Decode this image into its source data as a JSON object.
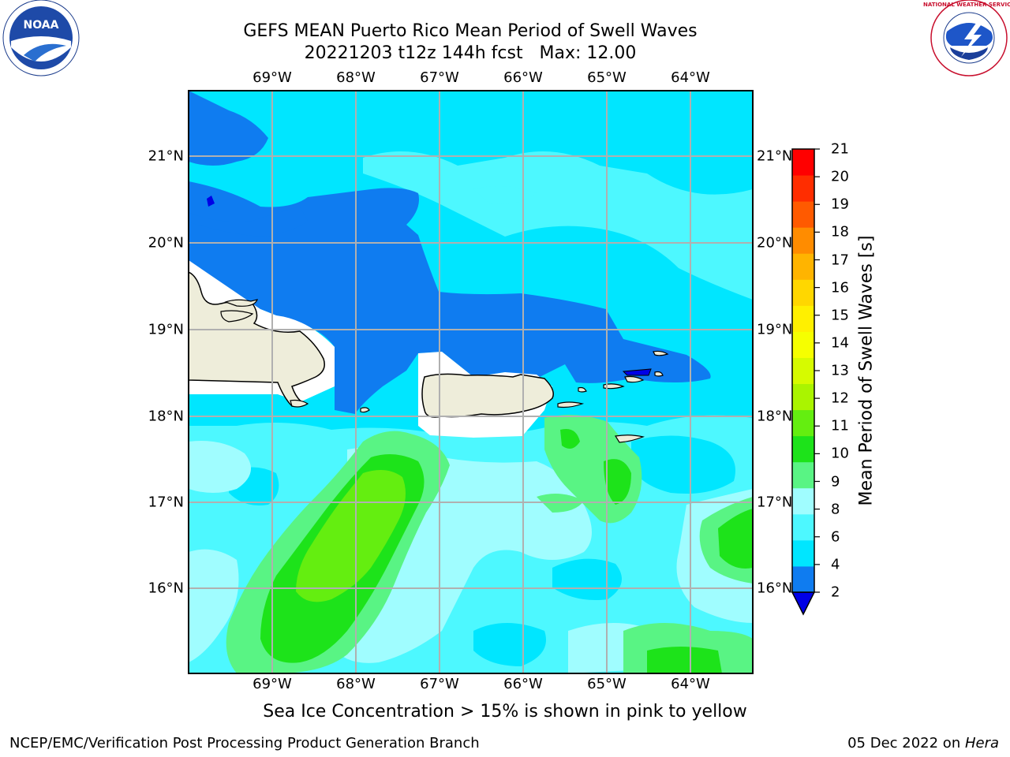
{
  "header": {
    "title_line1": "GEFS MEAN Puerto Rico Mean Period of Swell Waves",
    "title_line2": "20221203 t12z 144h fcst   Max: 12.00"
  },
  "map": {
    "lon_labels": [
      "69°W",
      "68°W",
      "67°W",
      "66°W",
      "65°W",
      "64°W"
    ],
    "lat_labels": [
      "21°N",
      "20°N",
      "19°N",
      "18°N",
      "17°N",
      "16°N"
    ],
    "lon_values": [
      -69,
      -68,
      -67,
      -66,
      -65,
      -64
    ],
    "lat_values": [
      21,
      20,
      19,
      18,
      17,
      16
    ],
    "lon_range": [
      -69.99,
      -63.27
    ],
    "lat_range": [
      15.02,
      21.75
    ],
    "land_color": "#eeedda",
    "masked_color": "#ffffff"
  },
  "colorbar": {
    "title": "Mean Period of Swell Waves [s]",
    "labels": [
      "21",
      "20",
      "19",
      "18",
      "17",
      "16",
      "15",
      "14",
      "13",
      "12",
      "11",
      "10",
      "9",
      "8",
      "6",
      "4",
      "2"
    ],
    "levels": [
      2,
      4,
      6,
      8,
      9,
      10,
      11,
      12,
      13,
      14,
      15,
      16,
      17,
      18,
      19,
      20,
      21
    ],
    "colors": [
      "#0f7cf0",
      "#00e6ff",
      "#4df8ff",
      "#a0fdff",
      "#59f484",
      "#1de31a",
      "#64ee10",
      "#aaf400",
      "#d6fb00",
      "#f6ff00",
      "#fff000",
      "#ffd700",
      "#ffb400",
      "#ff8c00",
      "#ff5a00",
      "#ff2d00",
      "#ff0000"
    ],
    "extend_color": "#0000e6"
  },
  "caption": "Sea Ice Concentration > 15% is shown in pink to yellow",
  "footer": {
    "left": "NCEP/EMC/Verification Post Processing Product Generation Branch",
    "right_date": "05 Dec 2022 on ",
    "right_host": "Hera"
  },
  "logos": {
    "noaa_text": "NOAA",
    "nws_text": "NATIONAL WEATHER SERVICE"
  }
}
